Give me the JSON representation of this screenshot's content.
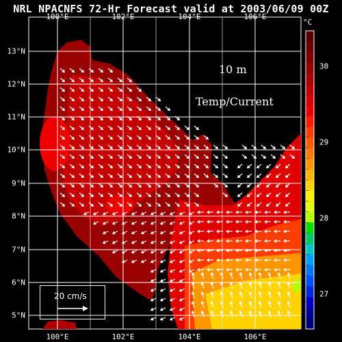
{
  "header": {
    "title": "NRL NPACNFS 72-Hr Forecast valid at 2003/06/09 00Z"
  },
  "map": {
    "depth_label": "10   m",
    "field_label": "Temp/Current",
    "longitude_labels": [
      "100°E",
      "102°E",
      "104°E",
      "106°E"
    ],
    "latitude_labels": [
      "13°N",
      "12°N",
      "11°N",
      "10°N",
      "9°N",
      "8°N",
      "7°N",
      "6°N",
      "5°N"
    ],
    "scale_label": "20 cm/s"
  },
  "colorbar": {
    "unit": "°C",
    "tick_labels": [
      "30",
      "29",
      "28",
      "27"
    ],
    "colors": [
      "#5a0000",
      "#6e0000",
      "#800000",
      "#960000",
      "#aa0000",
      "#c00000",
      "#d80000",
      "#ee0000",
      "#ff1a00",
      "#ff3c00",
      "#ff5a00",
      "#ff7800",
      "#ff9600",
      "#ffb400",
      "#ffd200",
      "#fff000",
      "#e6ff00",
      "#b4ff00",
      "#00e000",
      "#00c864",
      "#00c8c8",
      "#00a0ff",
      "#0078ff",
      "#0050ff",
      "#0028e0",
      "#0000c8",
      "#0000a0",
      "#000078"
    ]
  },
  "legend_colors": {
    "background": "#000000",
    "grid": "#ffffff",
    "vectors": "#ffffff"
  }
}
